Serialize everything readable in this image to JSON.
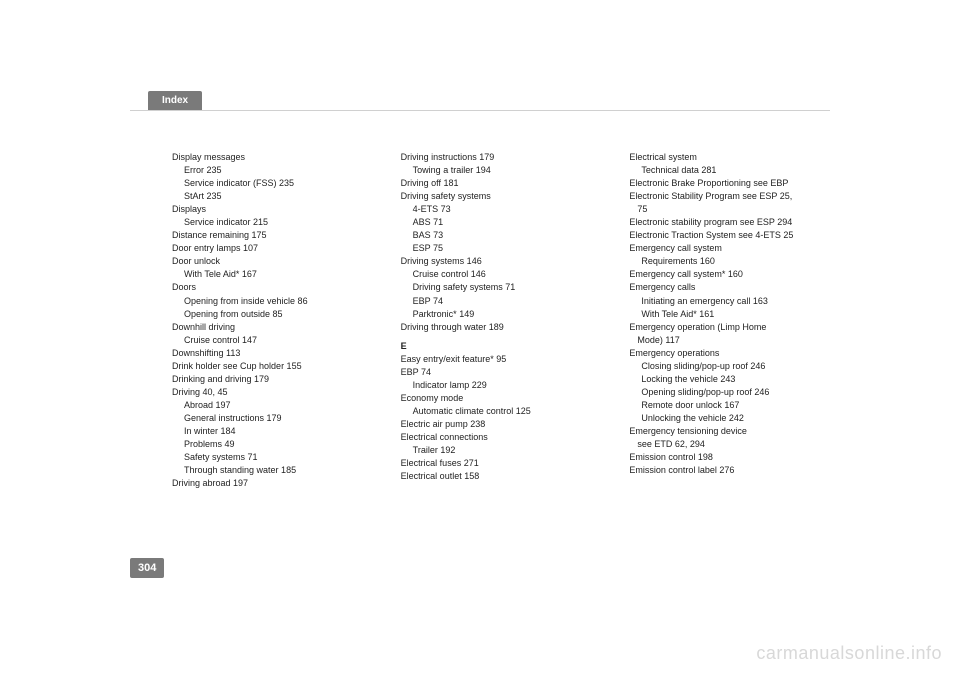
{
  "header": {
    "tab_label": "Index"
  },
  "page_number": "304",
  "watermark": "carmanualsonline.info",
  "col1": [
    {
      "t": "Display messages",
      "i": 0
    },
    {
      "t": "Error 235",
      "i": 1
    },
    {
      "t": "Service indicator (FSS) 235",
      "i": 1
    },
    {
      "t": "StArt 235",
      "i": 1
    },
    {
      "t": "Displays",
      "i": 0
    },
    {
      "t": "Service indicator 215",
      "i": 1
    },
    {
      "t": "Distance remaining 175",
      "i": 0
    },
    {
      "t": "Door entry lamps 107",
      "i": 0
    },
    {
      "t": "Door unlock",
      "i": 0
    },
    {
      "t": "With Tele Aid* 167",
      "i": 1
    },
    {
      "t": "Doors",
      "i": 0
    },
    {
      "t": "Opening from inside vehicle 86",
      "i": 1
    },
    {
      "t": "Opening from outside 85",
      "i": 1
    },
    {
      "t": "Downhill driving",
      "i": 0
    },
    {
      "t": "Cruise control 147",
      "i": 1
    },
    {
      "t": "Downshifting 113",
      "i": 0
    },
    {
      "t": "Drink holder see Cup holder 155",
      "i": 0
    },
    {
      "t": "Drinking and driving 179",
      "i": 0
    },
    {
      "t": "Driving 40, 45",
      "i": 0
    },
    {
      "t": "Abroad 197",
      "i": 1
    },
    {
      "t": "General instructions 179",
      "i": 1
    },
    {
      "t": "In winter 184",
      "i": 1
    },
    {
      "t": "Problems 49",
      "i": 1
    },
    {
      "t": "Safety systems 71",
      "i": 1
    },
    {
      "t": "Through standing water 185",
      "i": 1
    },
    {
      "t": "Driving abroad 197",
      "i": 0
    }
  ],
  "col2": [
    {
      "t": "Driving instructions 179",
      "i": 0
    },
    {
      "t": "Towing a trailer 194",
      "i": 1
    },
    {
      "t": "Driving off 181",
      "i": 0
    },
    {
      "t": "Driving safety systems",
      "i": 0
    },
    {
      "t": "4-ETS 73",
      "i": 1
    },
    {
      "t": "ABS 71",
      "i": 1
    },
    {
      "t": "BAS 73",
      "i": 1
    },
    {
      "t": "ESP 75",
      "i": 1
    },
    {
      "t": "Driving systems 146",
      "i": 0
    },
    {
      "t": "Cruise control 146",
      "i": 1
    },
    {
      "t": "Driving safety systems 71",
      "i": 1
    },
    {
      "t": "EBP 74",
      "i": 1
    },
    {
      "t": "Parktronic* 149",
      "i": 1
    },
    {
      "t": "Driving through water 189",
      "i": 0
    },
    {
      "t": "E",
      "i": 0,
      "head": true
    },
    {
      "t": "Easy entry/exit feature* 95",
      "i": 0
    },
    {
      "t": "EBP 74",
      "i": 0
    },
    {
      "t": "Indicator lamp 229",
      "i": 1
    },
    {
      "t": "Economy mode",
      "i": 0
    },
    {
      "t": "Automatic climate control 125",
      "i": 1
    },
    {
      "t": "Electric air pump 238",
      "i": 0
    },
    {
      "t": "Electrical connections",
      "i": 0
    },
    {
      "t": "Trailer 192",
      "i": 1
    },
    {
      "t": "Electrical fuses 271",
      "i": 0
    },
    {
      "t": "Electrical outlet 158",
      "i": 0
    }
  ],
  "col3": [
    {
      "t": "Electrical system",
      "i": 0
    },
    {
      "t": "Technical data 281",
      "i": 1
    },
    {
      "t": "Electronic Brake Proportioning see EBP",
      "i": 0
    },
    {
      "t": "Electronic Stability Program see ESP 25,",
      "i": 0
    },
    {
      "t": "75",
      "i": 2
    },
    {
      "t": "Electronic stability program see ESP 294",
      "i": 0
    },
    {
      "t": "Electronic Traction System see 4-ETS 25",
      "i": 0
    },
    {
      "t": "Emergency call system",
      "i": 0
    },
    {
      "t": "Requirements 160",
      "i": 1
    },
    {
      "t": "Emergency call system* 160",
      "i": 0
    },
    {
      "t": "Emergency calls",
      "i": 0
    },
    {
      "t": "Initiating an emergency call 163",
      "i": 1
    },
    {
      "t": "With Tele Aid* 161",
      "i": 1
    },
    {
      "t": "Emergency operation (Limp Home",
      "i": 0
    },
    {
      "t": "Mode) 117",
      "i": 2
    },
    {
      "t": "Emergency operations",
      "i": 0
    },
    {
      "t": "Closing sliding/pop-up roof 246",
      "i": 1
    },
    {
      "t": "Locking the vehicle 243",
      "i": 1
    },
    {
      "t": "Opening sliding/pop-up roof 246",
      "i": 1
    },
    {
      "t": "Remote door unlock 167",
      "i": 1
    },
    {
      "t": "Unlocking the vehicle 242",
      "i": 1
    },
    {
      "t": "Emergency tensioning device",
      "i": 0
    },
    {
      "t": "see ETD 62, 294",
      "i": 2
    },
    {
      "t": "Emission control 198",
      "i": 0
    },
    {
      "t": "Emission control label 276",
      "i": 0
    }
  ]
}
